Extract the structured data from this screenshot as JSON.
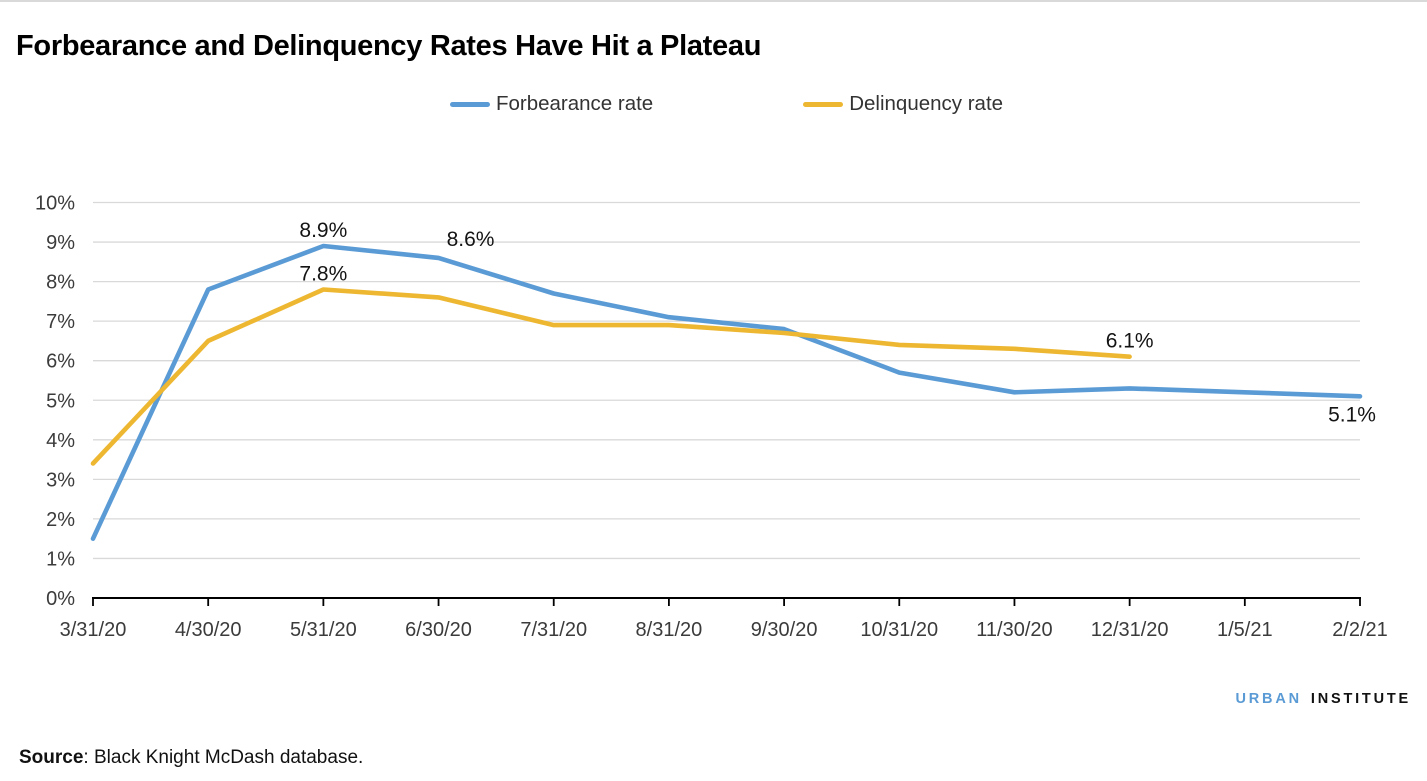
{
  "page": {
    "source_label": "Source",
    "source_text": ": Black Knight McDash database.",
    "logo": {
      "part1": "URBAN",
      "part2": "INSTITUTE",
      "part1_color": "#5B9BD5",
      "part2_color": "#111111"
    }
  },
  "chart_data": {
    "type": "line",
    "title": "Forbearance and Delinquency Rates Have Hit a Plateau",
    "categories": [
      "3/31/20",
      "4/30/20",
      "5/31/20",
      "6/30/20",
      "7/31/20",
      "8/31/20",
      "9/30/20",
      "10/31/20",
      "11/30/20",
      "12/31/20",
      "1/5/21",
      "2/2/21"
    ],
    "series": [
      {
        "name": "Forbearance rate",
        "color": "#5B9BD5",
        "values": [
          1.5,
          7.8,
          8.9,
          8.6,
          7.7,
          7.1,
          6.8,
          5.7,
          5.2,
          5.3,
          5.2,
          5.1
        ]
      },
      {
        "name": "Delinquency rate",
        "color": "#EDB732",
        "values": [
          3.4,
          6.5,
          7.8,
          7.6,
          6.9,
          6.9,
          6.7,
          6.4,
          6.3,
          6.1,
          null,
          null
        ]
      }
    ],
    "xlabel": "",
    "ylabel": "",
    "ylim": [
      0,
      10
    ],
    "y_ticks": [
      "0%",
      "1%",
      "2%",
      "3%",
      "4%",
      "5%",
      "6%",
      "7%",
      "8%",
      "9%",
      "10%"
    ],
    "grid": true,
    "legend_position": "top-center",
    "grid_color": "#D9D9D9",
    "axis_color": "#000000",
    "axis_text_color": "#3b3b3b",
    "data_label_color": "#141414",
    "annotations": [
      {
        "series": 0,
        "index": 2,
        "text": "8.9%",
        "position": "above"
      },
      {
        "series": 0,
        "index": 3,
        "text": "8.6%",
        "position": "above-right"
      },
      {
        "series": 1,
        "index": 2,
        "text": "7.8%",
        "position": "above"
      },
      {
        "series": 1,
        "index": 9,
        "text": "6.1%",
        "position": "above"
      },
      {
        "series": 0,
        "index": 11,
        "text": "5.1%",
        "position": "below-left"
      }
    ]
  }
}
